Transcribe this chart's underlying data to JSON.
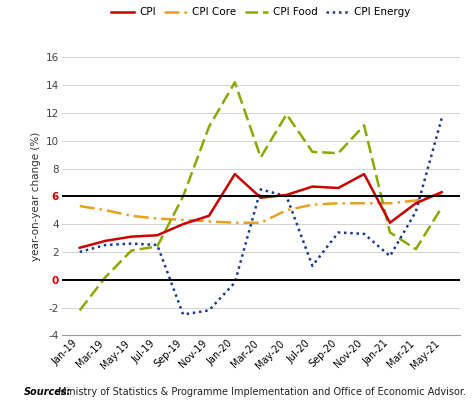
{
  "x_labels": [
    "Jan-19",
    "Mar-19",
    "May-19",
    "Jul-19",
    "Sep-19",
    "Nov-19",
    "Jan-20",
    "Mar-20",
    "May-20",
    "Jul-20",
    "Sep-20",
    "Nov-20",
    "Jan-21",
    "Mar-21",
    "May-21"
  ],
  "CPI": [
    2.3,
    2.8,
    3.1,
    3.2,
    4.0,
    4.6,
    7.6,
    5.9,
    6.1,
    6.7,
    6.6,
    7.6,
    4.1,
    5.5,
    6.3
  ],
  "CPI_Core": [
    5.3,
    5.0,
    4.6,
    4.4,
    4.3,
    4.2,
    4.1,
    4.1,
    5.0,
    5.4,
    5.5,
    5.5,
    5.5,
    5.7,
    6.2
  ],
  "CPI_Food": [
    -2.2,
    0.2,
    2.1,
    2.4,
    6.0,
    11.0,
    14.2,
    8.8,
    11.9,
    9.2,
    9.1,
    11.1,
    3.4,
    2.2,
    5.2
  ],
  "CPI_Energy": [
    2.0,
    2.5,
    2.6,
    2.5,
    -2.5,
    -2.2,
    -0.2,
    6.5,
    6.0,
    1.0,
    3.4,
    3.3,
    1.7,
    4.9,
    11.6
  ],
  "hline_values": [
    6,
    0
  ],
  "ylabel": "year-on-year change (%)",
  "ylim": [
    -4,
    16
  ],
  "yticks": [
    -4,
    -2,
    0,
    2,
    4,
    6,
    8,
    10,
    12,
    14,
    16
  ],
  "line_CPI_color": "#cc0000",
  "line_CPI_core_color": "#e8a020",
  "line_CPI_food_color": "#88aa00",
  "line_CPI_energy_color": "#1a3a8a",
  "hline_color": "#000000",
  "bg_color": "#ffffff",
  "grid_color": "#cccccc",
  "source_bold": "Sources:",
  "source_rest": " Ministry of Statistics & Programme Implementation and Office of Economic Advisor.",
  "legend_labels": [
    "CPI",
    "CPI Core",
    "CPI Food",
    "CPI Energy"
  ]
}
